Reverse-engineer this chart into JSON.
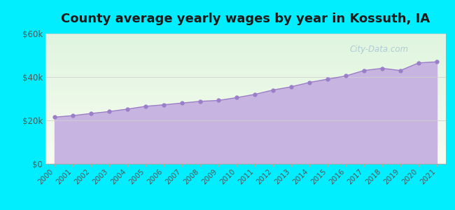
{
  "title": "County average yearly wages by year in Kossuth, IA",
  "years": [
    2000,
    2001,
    2002,
    2003,
    2004,
    2005,
    2006,
    2007,
    2008,
    2009,
    2010,
    2011,
    2012,
    2013,
    2014,
    2015,
    2016,
    2017,
    2018,
    2019,
    2020,
    2021
  ],
  "wages": [
    21500,
    22200,
    23200,
    24100,
    25200,
    26500,
    27200,
    28000,
    28800,
    29200,
    30500,
    32000,
    34000,
    35500,
    37500,
    39000,
    40500,
    43000,
    44000,
    43000,
    46500,
    47000
  ],
  "ylim": [
    0,
    60000
  ],
  "yticks": [
    0,
    20000,
    40000,
    60000
  ],
  "ytick_labels": [
    "$0",
    "$20k",
    "$40k",
    "$60k"
  ],
  "fill_color": "#c8b4e0",
  "marker_color": "#9b7ec8",
  "bg_outer": "#00eeff",
  "bg_plot": "#e8f5e8",
  "title_fontsize": 13,
  "watermark_text": "City-Data.com",
  "watermark_color": "#a8c4d4",
  "grid_color": "#d0d0d0"
}
